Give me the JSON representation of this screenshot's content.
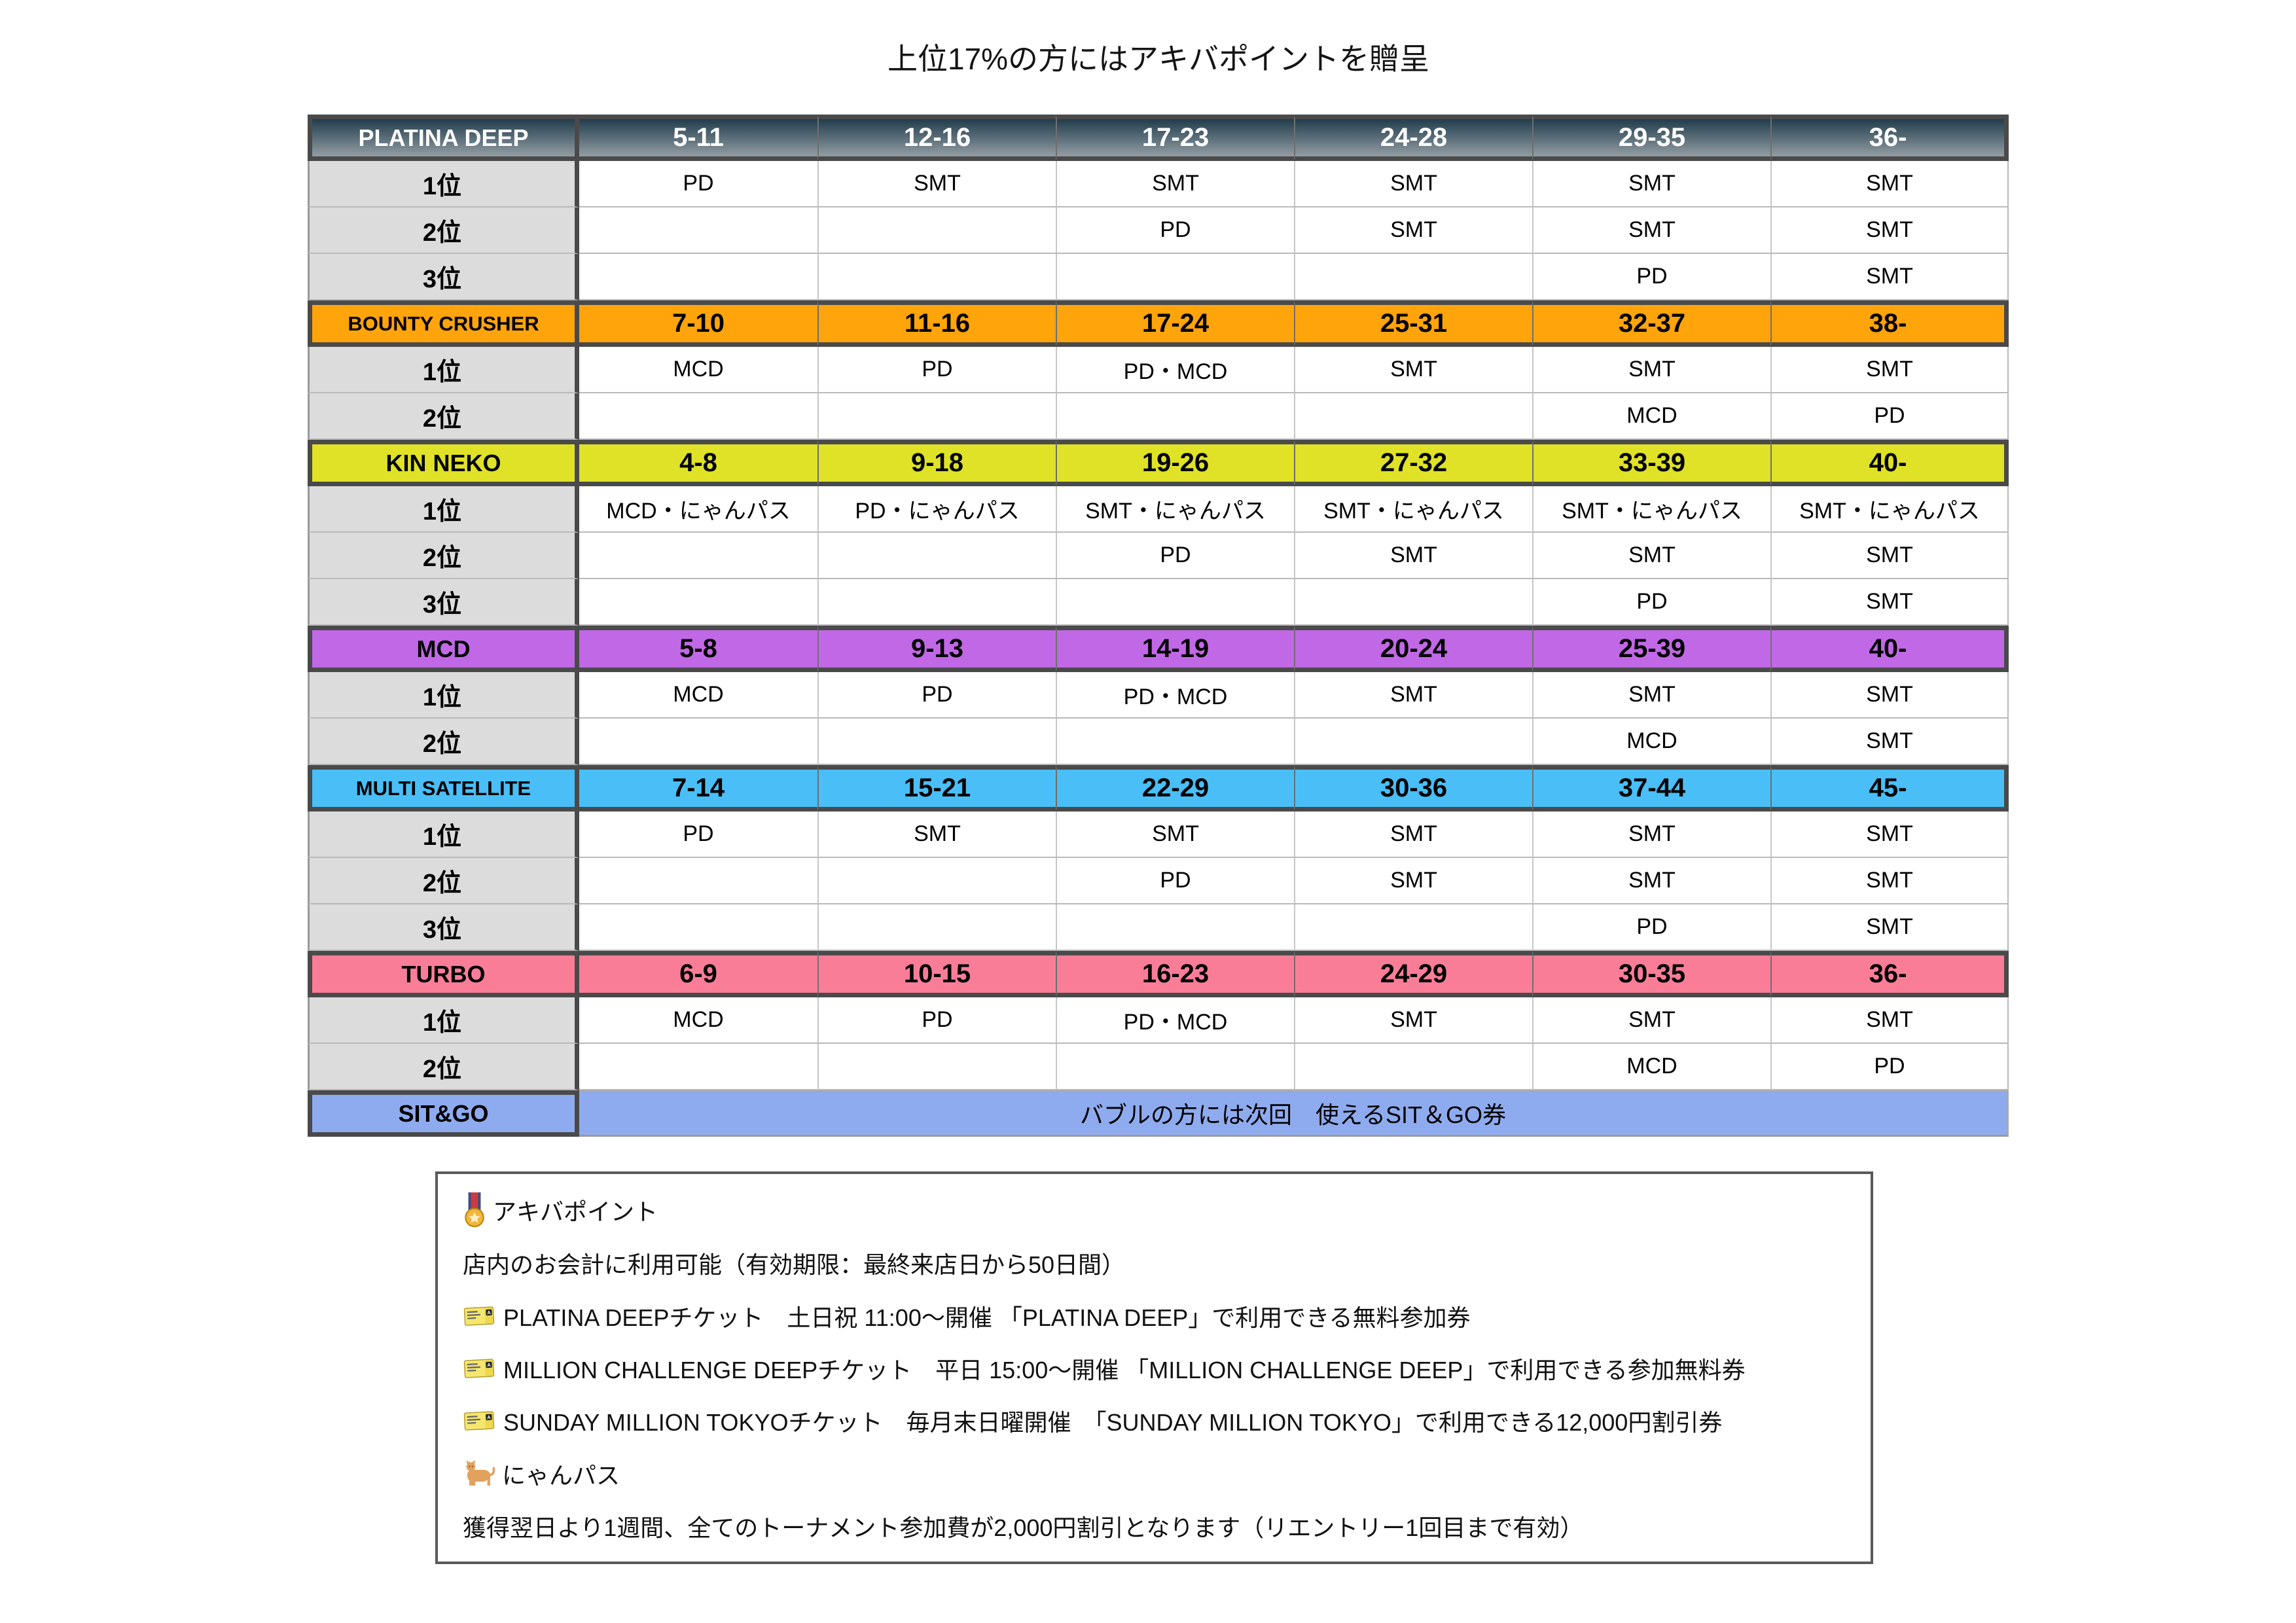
{
  "title": "上位17%の方にはアキバポイントを贈呈",
  "colors": {
    "dark_top": "#223d4d",
    "dark_bottom": "#939da3",
    "orange": "#ffa40b",
    "yellow": "#dfe226",
    "purple": "#c168e6",
    "blue": "#49bef7",
    "pink": "#fa7d98",
    "periwinkle": "#8fabef",
    "label_gray": "#dcdcdc",
    "border_dark": "#4a4a4a"
  },
  "table": {
    "sections": [
      {
        "name": "PLATINA DEEP",
        "style": "dark",
        "ranges": [
          "5-11",
          "12-16",
          "17-23",
          "24-28",
          "29-35",
          "36-"
        ],
        "rows": [
          {
            "label": "1位",
            "cells": [
              "PD",
              "SMT",
              "SMT",
              "SMT",
              "SMT",
              "SMT"
            ]
          },
          {
            "label": "2位",
            "cells": [
              "",
              "",
              "PD",
              "SMT",
              "SMT",
              "SMT"
            ]
          },
          {
            "label": "3位",
            "cells": [
              "",
              "",
              "",
              "",
              "PD",
              "SMT"
            ]
          }
        ]
      },
      {
        "name": "BOUNTY CRUSHER",
        "style": "orange",
        "ranges": [
          "7-10",
          "11-16",
          "17-24",
          "25-31",
          "32-37",
          "38-"
        ],
        "rows": [
          {
            "label": "1位",
            "cells": [
              "MCD",
              "PD",
              "PD・MCD",
              "SMT",
              "SMT",
              "SMT"
            ]
          },
          {
            "label": "2位",
            "cells": [
              "",
              "",
              "",
              "",
              "MCD",
              "PD"
            ]
          }
        ]
      },
      {
        "name": "KIN NEKO",
        "style": "yellow",
        "ranges": [
          "4-8",
          "9-18",
          "19-26",
          "27-32",
          "33-39",
          "40-"
        ],
        "rows": [
          {
            "label": "1位",
            "cells": [
              "MCD・にゃんパス",
              "PD・にゃんパス",
              "SMT・にゃんパス",
              "SMT・にゃんパス",
              "SMT・にゃんパス",
              "SMT・にゃんパス"
            ]
          },
          {
            "label": "2位",
            "cells": [
              "",
              "",
              "PD",
              "SMT",
              "SMT",
              "SMT"
            ]
          },
          {
            "label": "3位",
            "cells": [
              "",
              "",
              "",
              "",
              "PD",
              "SMT"
            ]
          }
        ]
      },
      {
        "name": "MCD",
        "style": "purple",
        "ranges": [
          "5-8",
          "9-13",
          "14-19",
          "20-24",
          "25-39",
          "40-"
        ],
        "rows": [
          {
            "label": "1位",
            "cells": [
              "MCD",
              "PD",
              "PD・MCD",
              "SMT",
              "SMT",
              "SMT"
            ]
          },
          {
            "label": "2位",
            "cells": [
              "",
              "",
              "",
              "",
              "MCD",
              "SMT"
            ]
          }
        ]
      },
      {
        "name": "MULTI SATELLITE",
        "style": "blue",
        "ranges": [
          "7-14",
          "15-21",
          "22-29",
          "30-36",
          "37-44",
          "45-"
        ],
        "rows": [
          {
            "label": "1位",
            "cells": [
              "PD",
              "SMT",
              "SMT",
              "SMT",
              "SMT",
              "SMT"
            ]
          },
          {
            "label": "2位",
            "cells": [
              "",
              "",
              "PD",
              "SMT",
              "SMT",
              "SMT"
            ]
          },
          {
            "label": "3位",
            "cells": [
              "",
              "",
              "",
              "",
              "PD",
              "SMT"
            ]
          }
        ]
      },
      {
        "name": "TURBO",
        "style": "pink",
        "ranges": [
          "6-9",
          "10-15",
          "16-23",
          "24-29",
          "30-35",
          "36-"
        ],
        "rows": [
          {
            "label": "1位",
            "cells": [
              "MCD",
              "PD",
              "PD・MCD",
              "SMT",
              "SMT",
              "SMT"
            ]
          },
          {
            "label": "2位",
            "cells": [
              "",
              "",
              "",
              "",
              "MCD",
              "PD"
            ]
          }
        ]
      },
      {
        "name": "SIT&GO",
        "style": "periwinkle",
        "merged_text": "バブルの方には次回　使えるSIT＆GO券"
      }
    ]
  },
  "legend": {
    "lines": [
      {
        "icon": "medal-icon",
        "text": "アキバポイント"
      },
      {
        "icon": "",
        "text": "店内のお会計に利用可能（有効期限：最終来店日から50日間）"
      },
      {
        "icon": "ticket-icon",
        "text": "PLATINA DEEPチケット　土日祝 11:00〜開催 「PLATINA DEEP」で利用できる無料参加券"
      },
      {
        "icon": "ticket-icon",
        "text": "MILLION CHALLENGE DEEPチケット　平日 15:00〜開催 「MILLION CHALLENGE DEEP」で利用できる参加無料券"
      },
      {
        "icon": "ticket-icon",
        "text": "SUNDAY MILLION TOKYOチケット　毎月末日曜開催　「SUNDAY MILLION TOKYO」で利用できる12,000円割引券"
      },
      {
        "icon": "cat-icon",
        "text": "にゃんパス"
      },
      {
        "icon": "",
        "text": "獲得翌日より1週間、全てのトーナメント参加費が2,000円割引となります（リエントリー1回目まで有効）"
      }
    ]
  }
}
